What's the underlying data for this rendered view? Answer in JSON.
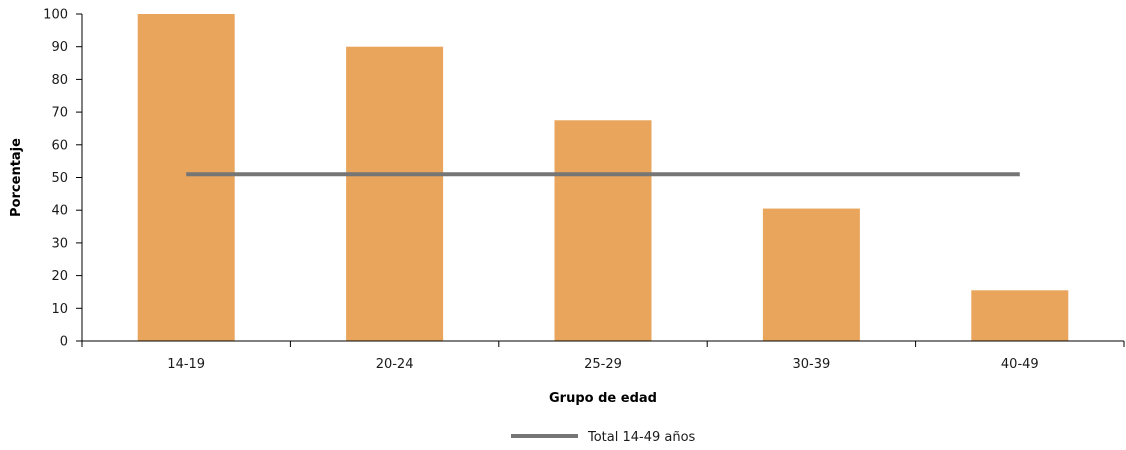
{
  "chart_data": {
    "type": "bar",
    "categories": [
      "14-19",
      "20-24",
      "25-29",
      "30-39",
      "40-49"
    ],
    "series": [
      {
        "values": [
          100,
          90,
          67.5,
          40.5,
          15.5
        ],
        "color": "#E9A55C"
      }
    ],
    "reference_line": {
      "name": "Total 14-49 años",
      "value": 51,
      "color": "#757575"
    },
    "title": "",
    "xlabel": "Grupo de edad",
    "ylabel": "Porcentaje",
    "ylim": [
      0,
      100
    ],
    "yticks": [
      0,
      10,
      20,
      30,
      40,
      50,
      60,
      70,
      80,
      90,
      100
    ],
    "grid": false,
    "legend_position": "bottom-center"
  }
}
